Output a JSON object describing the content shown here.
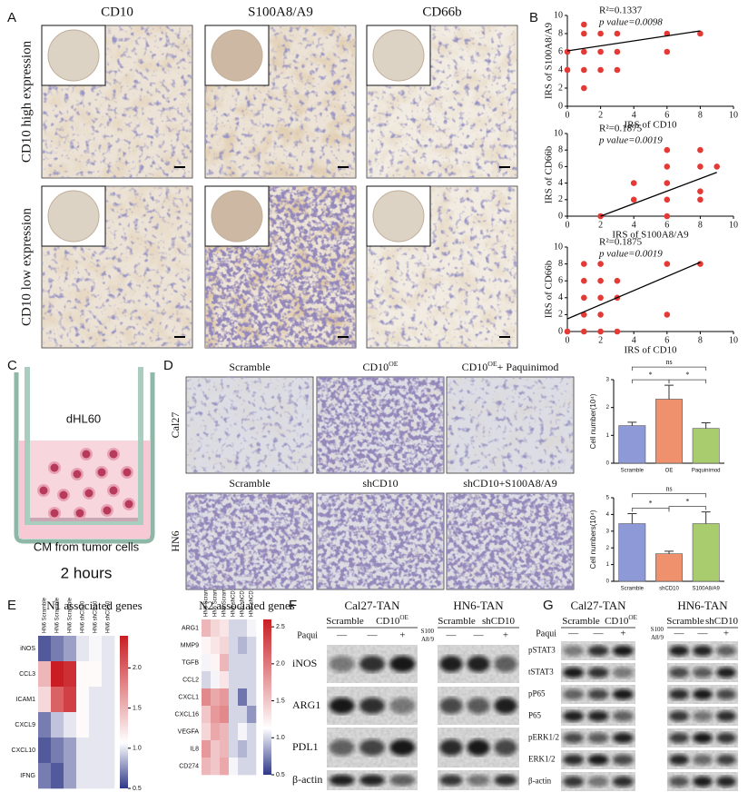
{
  "panel_labels": [
    "A",
    "B",
    "C",
    "D",
    "E",
    "F",
    "G"
  ],
  "panel_a": {
    "columns": [
      "CD10",
      "S100A8/A9",
      "CD66b"
    ],
    "rows": [
      "CD10 high expression",
      "CD10 low expression"
    ]
  },
  "panel_c": {
    "cells": "dHL60",
    "medium": "CM from tumor cells",
    "time": "2 hours"
  },
  "panel_d": {
    "rows": [
      {
        "label": "Cal27",
        "columns": [
          {
            "text": "Scramble"
          },
          {
            "text": "CD10",
            "sup": "OE"
          },
          {
            "text": "CD10",
            "sup": "OE",
            "after": "+ Paquinimod"
          }
        ]
      },
      {
        "label": "HN6",
        "columns": [
          {
            "text": "Scramble"
          },
          {
            "text": "shCD10"
          },
          {
            "text": "shCD10+S100A8/A9"
          }
        ]
      }
    ]
  },
  "panel_f": {
    "proteins": [
      "iNOS",
      "ARG1",
      "PDL1",
      "β-actin"
    ],
    "blocks": [
      {
        "title": "Cal27-TAN",
        "groups": [
          {
            "text": "Scramble"
          },
          {
            "text": "CD10",
            "sup": "OE"
          }
        ],
        "treatment": [
          "Paqui"
        ],
        "signs": [
          "—",
          "—",
          "+"
        ]
      },
      {
        "title": "HN6-TAN",
        "groups": [
          {
            "text": "Scramble"
          },
          {
            "text": "shCD10"
          }
        ],
        "treatment": [
          "S100",
          "A8/9"
        ],
        "signs": [
          "—",
          "—",
          "+"
        ]
      }
    ]
  },
  "panel_g": {
    "proteins": [
      "pSTAT3",
      "tSTAT3",
      "pP65",
      "P65",
      "pERK1/2",
      "ERK1/2",
      "β-actin"
    ],
    "blocks": [
      {
        "title": "Cal27-TAN",
        "groups": [
          {
            "text": "Scramble"
          },
          {
            "text": "CD10",
            "sup": "OE"
          }
        ],
        "treatment": [
          "Paqui"
        ],
        "signs": [
          "—",
          "—",
          "+"
        ]
      },
      {
        "title": "HN6-TAN",
        "groups": [
          {
            "text": "Scramble"
          },
          {
            "text": "shCD10"
          }
        ],
        "treatment": [
          "S100",
          "A8/9"
        ],
        "signs": [
          "—",
          "—",
          "+"
        ]
      }
    ]
  },
  "chart_data": [
    {
      "type": "scatter",
      "annotations": [
        "R²=0.1337",
        "p value=0.0098"
      ],
      "xlabel": "IRS of CD10",
      "ylabel": "IRS of S100A8/A9",
      "color": "#e53935",
      "x": [
        0,
        0,
        1,
        1,
        1,
        1,
        1,
        2,
        2,
        2,
        3,
        3,
        3,
        6,
        6,
        8
      ],
      "y": [
        6,
        4,
        9,
        8,
        6,
        4,
        2,
        8,
        6,
        4,
        8,
        6,
        4,
        8,
        6,
        8
      ],
      "trend_line": {
        "x": [
          0,
          8
        ],
        "y": [
          6.1,
          8.3
        ]
      },
      "xlim": [
        0,
        10
      ],
      "ylim": [
        0,
        10
      ],
      "xticks": [
        0,
        2,
        4,
        6,
        8,
        10
      ],
      "yticks": [
        0,
        2,
        4,
        6,
        8,
        10
      ]
    },
    {
      "type": "scatter",
      "annotations": [
        "R²=0.1875",
        "p value=0.0019"
      ],
      "xlabel": "IRS of S100A8/A9",
      "ylabel": "IRS of CD66b",
      "color": "#e53935",
      "x": [
        2,
        4,
        4,
        6,
        6,
        6,
        6,
        6,
        8,
        8,
        8,
        8,
        9
      ],
      "y": [
        0,
        4,
        2,
        8,
        6,
        4,
        2,
        0,
        8,
        6,
        3,
        2,
        6
      ],
      "trend_line": {
        "x": [
          2,
          9
        ],
        "y": [
          0,
          5.3
        ]
      },
      "xlim": [
        0,
        10
      ],
      "ylim": [
        0,
        10
      ],
      "xticks": [
        0,
        2,
        4,
        6,
        8,
        10
      ],
      "yticks": [
        0,
        2,
        4,
        6,
        8,
        10
      ]
    },
    {
      "type": "scatter",
      "annotations": [
        "R²=0.1875",
        "p value=0.0019"
      ],
      "xlabel": "IRS of CD10",
      "ylabel": "IRS of CD66b",
      "color": "#e53935",
      "x": [
        0,
        1,
        1,
        1,
        1,
        1,
        2,
        2,
        2,
        2,
        2,
        3,
        3,
        3,
        6,
        6,
        8
      ],
      "y": [
        0,
        8,
        6,
        4,
        2,
        0,
        8,
        6,
        4,
        2,
        0,
        6,
        4,
        0,
        8,
        2,
        8
      ],
      "trend_line": {
        "x": [
          0,
          8
        ],
        "y": [
          1.5,
          8.2
        ]
      },
      "xlim": [
        0,
        10
      ],
      "ylim": [
        0,
        10
      ],
      "xticks": [
        0,
        2,
        4,
        6,
        8,
        10
      ],
      "yticks": [
        0,
        2,
        4,
        6,
        8,
        10
      ]
    },
    {
      "type": "bar",
      "ylabel": "Cell number(10⁴)",
      "categories": [
        "Scramble",
        "OE",
        "Paquinimod"
      ],
      "values": [
        1.35,
        2.3,
        1.25
      ],
      "errors": [
        0.12,
        0.5,
        0.2
      ],
      "colors": [
        "#8e9ad8",
        "#f0916e",
        "#a8cc6e"
      ],
      "ylim": [
        0,
        3
      ],
      "yticks": [
        0,
        1,
        2,
        3
      ],
      "comparisons": [
        {
          "pair": [
            0,
            1
          ],
          "label": "*"
        },
        {
          "pair": [
            1,
            2
          ],
          "label": "*"
        },
        {
          "pair": [
            0,
            2
          ],
          "label": "ns"
        }
      ]
    },
    {
      "type": "bar",
      "ylabel": "Cell numbers(10⁴)",
      "categories": [
        "Scramble",
        "shCD10",
        "S100A8/A9"
      ],
      "values": [
        3.45,
        1.65,
        3.45
      ],
      "errors": [
        0.6,
        0.15,
        0.7
      ],
      "colors": [
        "#8e9ad8",
        "#f0916e",
        "#a8cc6e"
      ],
      "ylim": [
        0,
        5
      ],
      "yticks": [
        0,
        1,
        2,
        3,
        4,
        5
      ],
      "comparisons": [
        {
          "pair": [
            0,
            1
          ],
          "label": "*"
        },
        {
          "pair": [
            1,
            2
          ],
          "label": "*"
        },
        {
          "pair": [
            0,
            2
          ],
          "label": "ns"
        }
      ]
    },
    {
      "type": "heatmap",
      "title": "N1 associated genes",
      "columns": [
        "HN6 Scramble",
        "HN6 Scramble",
        "HN6 Scramble",
        "HN6 shCD10",
        "HN6 shCD10",
        "HN6 shCD10"
      ],
      "rows": [
        "iNOS",
        "CCL3",
        "ICAM1",
        "CXCL9",
        "CXCL10",
        "IFNG"
      ],
      "values": [
        [
          0.6,
          0.7,
          0.8,
          1.0,
          1.05,
          1.0
        ],
        [
          1.5,
          2.4,
          2.3,
          1.1,
          1.1,
          1.0
        ],
        [
          1.3,
          2.0,
          2.2,
          1.1,
          1.0,
          1.0
        ],
        [
          0.7,
          0.9,
          1.0,
          1.1,
          1.0,
          1.0
        ],
        [
          0.6,
          0.7,
          0.8,
          1.0,
          1.0,
          1.0
        ],
        [
          0.7,
          0.6,
          0.8,
          1.0,
          1.0,
          1.0
        ]
      ],
      "vlim": [
        0.5,
        2.4
      ],
      "colorbar_ticks": [
        0.5,
        {
          "value": 1,
          "label": "1.0"
        },
        1.5,
        {
          "value": 2,
          "label": "2.0"
        }
      ]
    },
    {
      "type": "heatmap",
      "title": "N2 associated genes",
      "columns": [
        "HN6 Scramble",
        "HN6 Scramble",
        "HN6 Scramble",
        "HN6 shCD10",
        "HN6 shCD10",
        "HN6 shCD10"
      ],
      "rows": [
        "ARG1",
        "MMP9",
        "TGFB",
        "CCL2",
        "CXCL1",
        "CXCL16",
        "VEGFA",
        "IL8",
        "CD274"
      ],
      "values": [
        [
          1.6,
          1.4,
          1.3,
          1.0,
          1.0,
          1.1
        ],
        [
          1.2,
          1.3,
          1.4,
          1.0,
          0.9,
          1.0
        ],
        [
          1.1,
          1.2,
          1.6,
          1.0,
          1.0,
          1.0
        ],
        [
          1.0,
          1.1,
          1.3,
          1.0,
          1.0,
          1.0
        ],
        [
          1.9,
          1.7,
          1.8,
          1.0,
          0.7,
          1.0
        ],
        [
          1.5,
          1.8,
          1.9,
          1.0,
          1.0,
          0.8
        ],
        [
          1.4,
          1.7,
          1.6,
          1.0,
          1.1,
          1.0
        ],
        [
          1.8,
          1.5,
          1.6,
          1.0,
          0.9,
          1.0
        ],
        [
          1.6,
          1.5,
          1.7,
          1.1,
          1.0,
          1.0
        ]
      ],
      "vlim": [
        0.5,
        2.6
      ],
      "colorbar_ticks": [
        0.5,
        {
          "value": 1,
          "label": "1.0"
        },
        1.5,
        {
          "value": 2,
          "label": "2.0"
        },
        2.5
      ]
    }
  ]
}
